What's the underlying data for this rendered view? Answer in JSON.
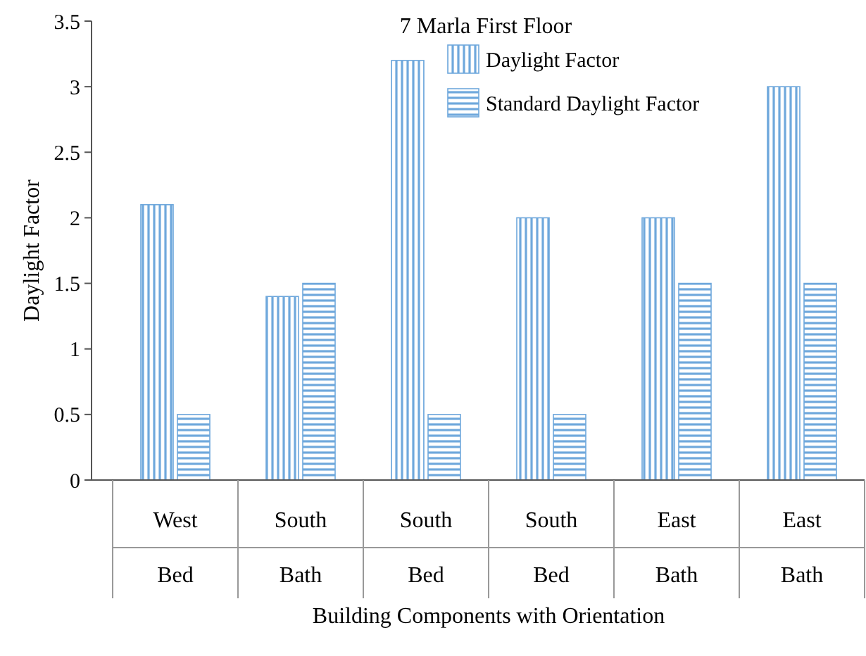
{
  "chart_data": {
    "type": "bar",
    "title": "7 Marla First Floor",
    "xlabel": "Building Components with Orientation",
    "ylabel": "Daylight Factor",
    "categories": [
      "West\nBed",
      "South\nBath",
      "South\nBed",
      "South\nBed",
      "East\nBath",
      "East\nBath"
    ],
    "series": [
      {
        "name": "Daylight Factor",
        "color": "#6fa8dc",
        "values": [
          2.1,
          1.4,
          3.2,
          2.0,
          2.0,
          3.0
        ]
      },
      {
        "name": "Standard Daylight Factor",
        "color": "#6fa8dc",
        "values": [
          0.5,
          1.5,
          0.5,
          0.5,
          1.5,
          1.5
        ]
      }
    ],
    "ylim": [
      0,
      3.5
    ],
    "yticks": [
      0,
      0.5,
      1,
      1.5,
      2,
      2.5,
      3,
      3.5
    ],
    "grid": false,
    "legend": "top right"
  }
}
